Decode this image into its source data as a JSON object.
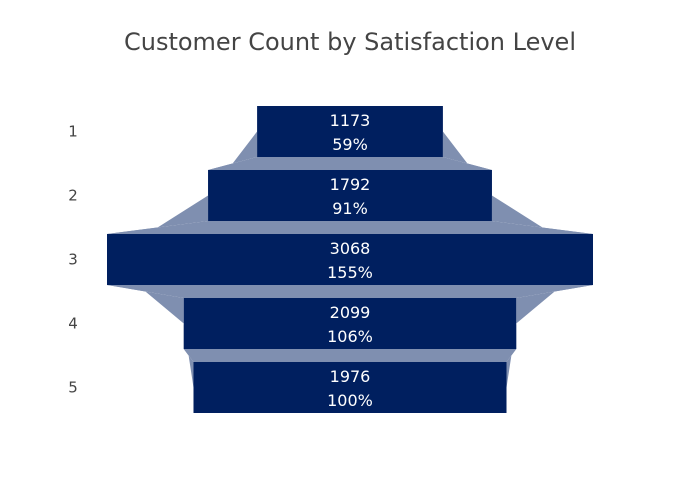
{
  "chart_data": {
    "type": "funnel",
    "title": "Customer Count by Satisfaction Level",
    "categories": [
      "1",
      "2",
      "3",
      "4",
      "5"
    ],
    "values": [
      1173,
      1792,
      3068,
      2099,
      1976
    ],
    "percent_labels": [
      "59%",
      "91%",
      "155%",
      "106%",
      "100%"
    ],
    "xlabel": "",
    "ylabel": "",
    "grid": false,
    "legend": "none",
    "colors": {
      "bar": "#001f5f",
      "connector": "#7f8fb0",
      "text": "#444444",
      "bar_text": "#ffffff"
    }
  }
}
